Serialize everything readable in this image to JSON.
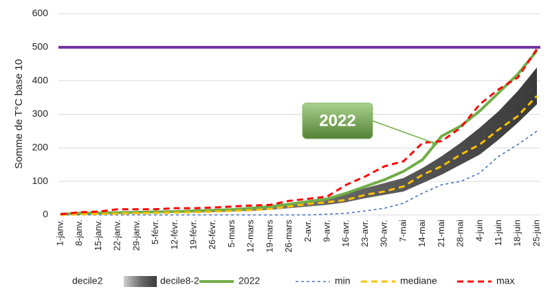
{
  "chart_data": {
    "type": "line",
    "y_label": "Somme de T°C base 10",
    "categories": [
      "1-janv.",
      "8-janv.",
      "15-janv.",
      "22-janv.",
      "29-janv.",
      "5-févr.",
      "12-févr.",
      "19-févr.",
      "26-févr.",
      "5-mars",
      "12-mars",
      "19-mars",
      "26-mars",
      "2-avr.",
      "9-avr.",
      "16-avr.",
      "23-avr.",
      "30-avr.",
      "7-mai",
      "14-mai",
      "21-mai",
      "28-mai",
      "4-juin",
      "11-juin",
      "18-juin",
      "25-juin"
    ],
    "ylim": [
      0,
      600
    ],
    "yticks": [
      0,
      100,
      200,
      300,
      400,
      500,
      600
    ],
    "grid": true,
    "threshold": {
      "value": 500,
      "color": "#7030a0"
    },
    "annotation": "2022",
    "series": [
      {
        "name": "decile2",
        "style": "stack-base",
        "color": "#ffffff",
        "values": [
          0,
          1,
          2,
          3,
          4,
          5,
          6,
          7,
          8,
          10,
          12,
          15,
          20,
          25,
          30,
          38,
          50,
          60,
          70,
          95,
          120,
          150,
          180,
          225,
          275,
          330
        ]
      },
      {
        "name": "decile8-2",
        "style": "stack-band",
        "color": "#555555",
        "values": [
          2,
          3,
          3,
          3,
          3,
          3,
          3,
          3,
          4,
          5,
          6,
          7,
          10,
          15,
          20,
          27,
          30,
          35,
          40,
          45,
          55,
          65,
          80,
          85,
          95,
          110
        ]
      },
      {
        "name": "2022",
        "style": "solid",
        "color": "#70ad47",
        "values": [
          2,
          5,
          6,
          7,
          8,
          9,
          10,
          12,
          14,
          16,
          20,
          25,
          32,
          40,
          48,
          65,
          85,
          105,
          130,
          165,
          235,
          265,
          310,
          365,
          420,
          490
        ]
      },
      {
        "name": "min",
        "style": "dash-thin",
        "color": "#4472c4",
        "values": [
          0,
          0,
          0,
          0,
          0,
          0,
          0,
          0,
          0,
          0,
          0,
          0,
          0,
          0,
          2,
          5,
          12,
          20,
          35,
          65,
          90,
          100,
          125,
          175,
          210,
          250
        ]
      },
      {
        "name": "mediane",
        "style": "dash",
        "color": "#ffc000",
        "values": [
          0,
          2,
          3,
          4,
          5,
          6,
          7,
          8,
          10,
          12,
          14,
          18,
          25,
          33,
          38,
          45,
          60,
          70,
          85,
          120,
          145,
          180,
          210,
          255,
          295,
          355
        ]
      },
      {
        "name": "max",
        "style": "dash",
        "color": "#ff0000",
        "values": [
          2,
          8,
          10,
          17,
          17,
          17,
          20,
          20,
          22,
          25,
          28,
          30,
          42,
          48,
          55,
          90,
          115,
          145,
          160,
          215,
          220,
          260,
          330,
          375,
          410,
          495
        ]
      }
    ]
  }
}
